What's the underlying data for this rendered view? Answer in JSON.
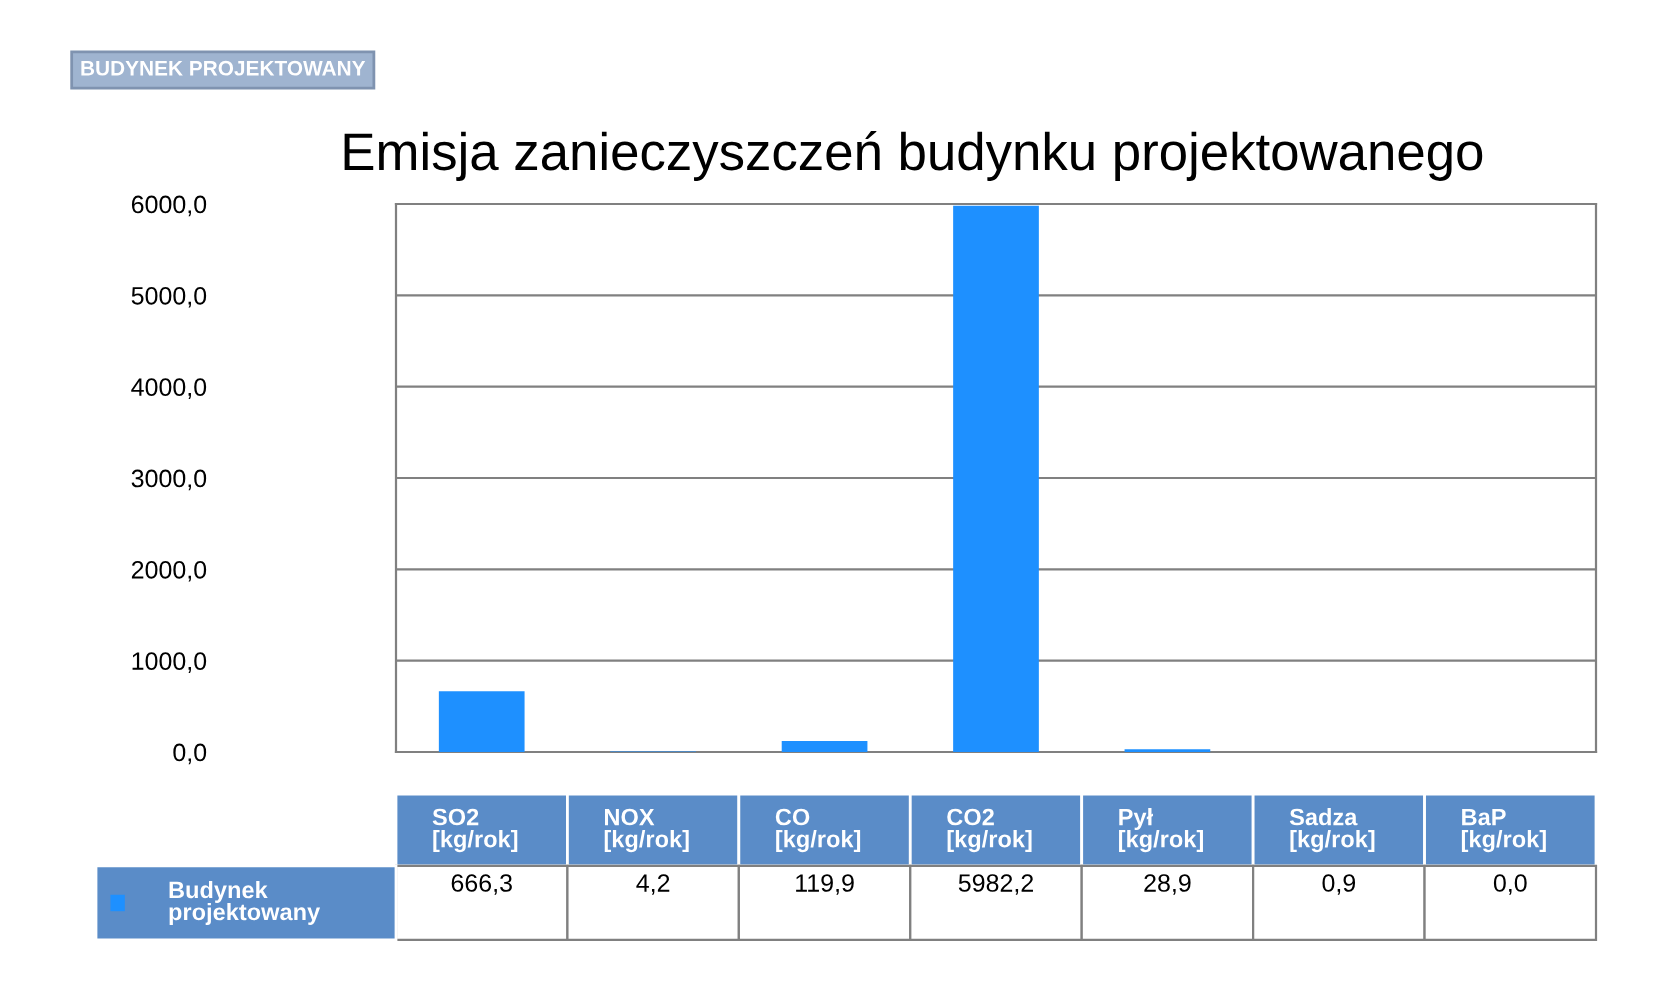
{
  "chart_data": {
    "type": "bar",
    "title": "Emisja zanieczyszczeń budynku projektowanego",
    "categories": [
      "SO2\n[kg/rok]",
      "NOX\n[kg/rok]",
      "CO\n[kg/rok]",
      "CO2\n[kg/rok]",
      "Pył\n[kg/rok]",
      "Sadza\n[kg/rok]",
      "BaP\n[kg/rok]"
    ],
    "series": [
      {
        "name": "Budynek\nprojektowany",
        "color": "#1e90ff",
        "values": [
          666.3,
          4.2,
          119.9,
          5982.2,
          28.9,
          0.9,
          0.0
        ],
        "value_labels": [
          "666,3",
          "4,2",
          "119,9",
          "5982,2",
          "28,9",
          "0,9",
          "0,0"
        ]
      }
    ],
    "ylim": [
      0,
      6000
    ],
    "yticks": [
      {
        "value": 0,
        "label": "0,0"
      },
      {
        "value": 1000,
        "label": "1000,0"
      },
      {
        "value": 2000,
        "label": "2000,0"
      },
      {
        "value": 3000,
        "label": "3000,0"
      },
      {
        "value": 4000,
        "label": "4000,0"
      },
      {
        "value": 5000,
        "label": "5000,0"
      },
      {
        "value": 6000,
        "label": "6000,0"
      }
    ],
    "grid": "y",
    "legend": "bottom left",
    "annotations": [
      "BUDYNEK PROJEKTOWANY"
    ]
  }
}
